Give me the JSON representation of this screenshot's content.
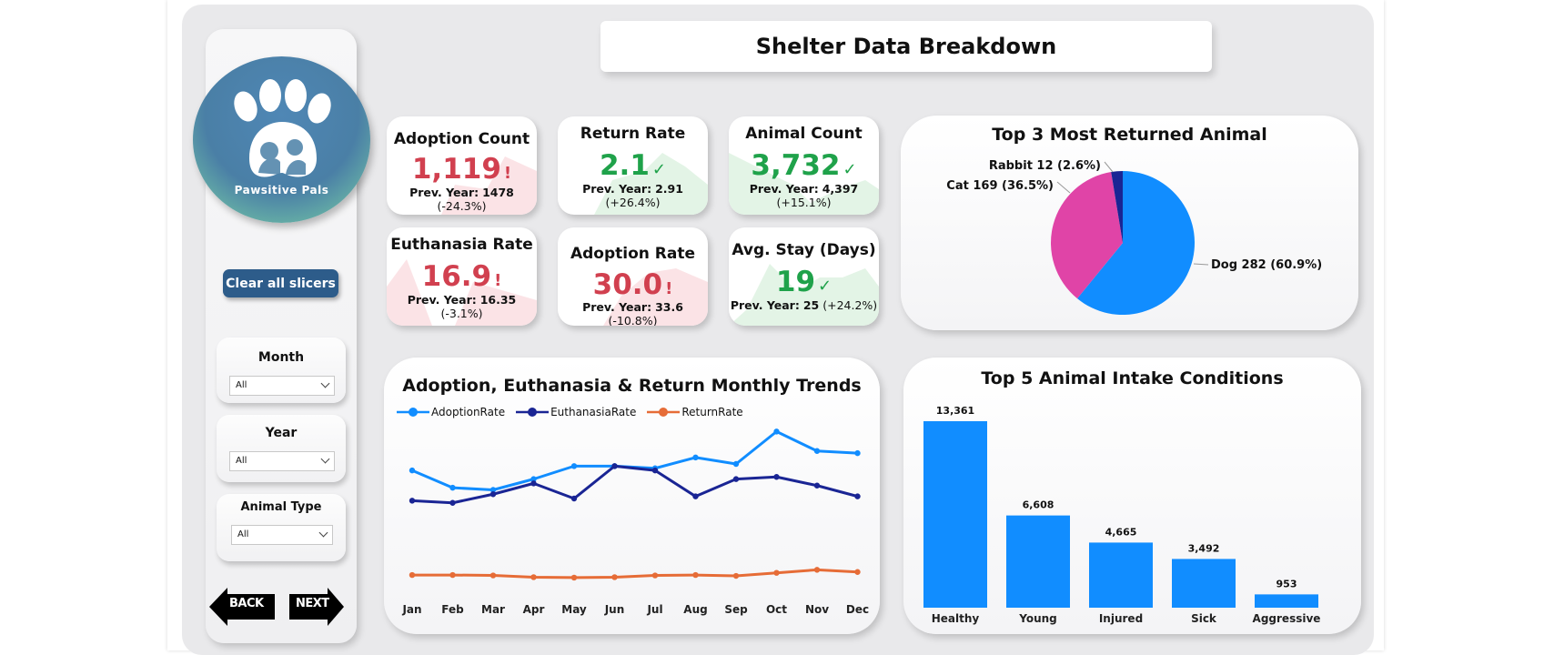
{
  "header": {
    "title": "Shelter Data Breakdown"
  },
  "logo": {
    "text": "Pawsitive Pals"
  },
  "sidebar": {
    "clear_label": "Clear all slicers",
    "slicers": [
      {
        "title": "Month",
        "value": "All"
      },
      {
        "title": "Year",
        "value": "All"
      },
      {
        "title": "Animal Type",
        "value": "All"
      }
    ],
    "back_label": "BACK",
    "next_label": "NEXT"
  },
  "kpis": [
    {
      "title": "Adoption Count",
      "value": "1,119",
      "mark": "!",
      "prev_label": "Prev. Year:",
      "prev_value": "1478",
      "change": "(-24.3%)",
      "status": "bad"
    },
    {
      "title": "Return Rate",
      "value": "2.1",
      "mark": "✓",
      "prev_label": "Prev. Year:",
      "prev_value": "2.91",
      "change": "(+26.4%)",
      "status": "good"
    },
    {
      "title": "Animal Count",
      "value": "3,732",
      "mark": "✓",
      "prev_label": "Prev. Year:",
      "prev_value": "4,397",
      "change": "(+15.1%)",
      "status": "good"
    },
    {
      "title": "Euthanasia Rate",
      "value": "16.9",
      "mark": "!",
      "prev_label": "Prev. Year:",
      "prev_value": "16.35",
      "change": "(-3.1%)",
      "status": "bad"
    },
    {
      "title": "Adoption Rate",
      "value": "30.0",
      "mark": "!",
      "prev_label": "Prev. Year:",
      "prev_value": "33.6",
      "change": "(-10.8%)",
      "status": "bad"
    },
    {
      "title": "Avg. Stay (Days)",
      "value": "19",
      "mark": "✓",
      "prev_label": "Prev. Year:",
      "prev_value": "25",
      "change": "(+24.2%)",
      "status": "good"
    }
  ],
  "colors": {
    "bad": "#d1404f",
    "good": "#1fa24a",
    "accent": "#118dff",
    "dark_blue": "#1a2594",
    "orange": "#e66c37",
    "pink": "#e044a7"
  },
  "chart_data": [
    {
      "type": "pie",
      "title": "Top 3 Most Returned Animal",
      "slices": [
        {
          "label": "Dog",
          "value": 282,
          "percent": 60.9,
          "display": "Dog 282 (60.9%)",
          "color": "#118dff"
        },
        {
          "label": "Cat",
          "value": 169,
          "percent": 36.5,
          "display": "Cat 169 (36.5%)",
          "color": "#e044a7"
        },
        {
          "label": "Rabbit",
          "value": 12,
          "percent": 2.6,
          "display": "Rabbit 12 (2.6%)",
          "color": "#1a2594"
        }
      ]
    },
    {
      "type": "line",
      "title": "Adoption, Euthanasia & Return Monthly Trends",
      "categories": [
        "Jan",
        "Feb",
        "Mar",
        "Apr",
        "May",
        "Jun",
        "Jul",
        "Aug",
        "Sep",
        "Oct",
        "Nov",
        "Dec"
      ],
      "ylim": [
        0,
        40
      ],
      "series": [
        {
          "name": "AdoptionRate",
          "color": "#118dff",
          "values": [
            26.5,
            22.5,
            22.0,
            24.5,
            27.5,
            27.5,
            27.0,
            29.5,
            28.0,
            35.5,
            31.0,
            30.5
          ]
        },
        {
          "name": "EuthanasiaRate",
          "color": "#1a2594",
          "values": [
            19.5,
            19.0,
            21.0,
            23.5,
            20.0,
            27.5,
            26.5,
            20.5,
            24.5,
            25.0,
            23.0,
            20.5
          ]
        },
        {
          "name": "ReturnRate",
          "color": "#e66c37",
          "values": [
            2.3,
            2.3,
            2.2,
            1.8,
            1.7,
            1.8,
            2.2,
            2.3,
            2.1,
            2.8,
            3.5,
            3.0
          ]
        }
      ]
    },
    {
      "type": "bar",
      "title": "Top 5 Animal Intake Conditions",
      "categories": [
        "Healthy",
        "Young",
        "Injured",
        "Sick",
        "Aggressive"
      ],
      "values": [
        13361,
        6608,
        4665,
        3492,
        953
      ],
      "labels": [
        "13,361",
        "6,608",
        "4,665",
        "3,492",
        "953"
      ],
      "color": "#118dff"
    }
  ]
}
